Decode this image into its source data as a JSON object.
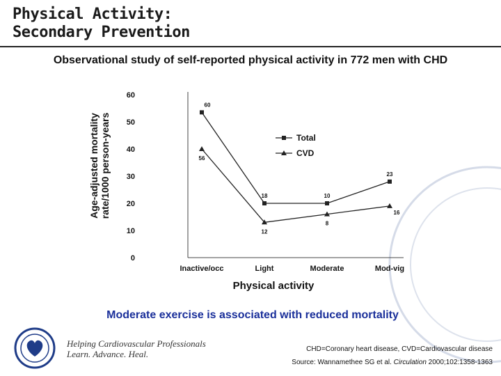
{
  "slide": {
    "title_line1": "Physical Activity:",
    "title_line2": "Secondary Prevention",
    "subtitle": "Observational study of self-reported physical activity in 772 men with CHD",
    "conclusion": "Moderate exercise is associated with reduced mortality",
    "colors": {
      "title_rule": "#222222",
      "conclusion": "#1a2f9a",
      "series": "#222222",
      "watermark": "#c8d0e0"
    }
  },
  "chart_data": {
    "type": "line",
    "title": "",
    "xlabel": "Physical activity",
    "ylabel_line1": "Age-adjusted mortality",
    "ylabel_line2": "rate/1000 person-years",
    "categories": [
      "Inactive/occ",
      "Light",
      "Moderate",
      "Mod-vig"
    ],
    "ylim": [
      0,
      60
    ],
    "yticks": [
      0,
      10,
      20,
      30,
      40,
      50,
      60
    ],
    "grid": false,
    "legend_position": "top-right",
    "series": [
      {
        "name": "Total",
        "marker": "square",
        "values": [
          53.5,
          20,
          20,
          28
        ],
        "labels": [
          "60",
          "18",
          "10",
          "23"
        ]
      },
      {
        "name": "CVD",
        "marker": "triangle",
        "values": [
          40,
          13,
          16,
          19
        ],
        "labels": [
          "56",
          "12",
          "8",
          "16"
        ]
      }
    ]
  },
  "footer": {
    "tagline_line1": "Helping Cardiovascular Professionals",
    "tagline_line2": "Learn. Advance. Heal.",
    "abbreviations": "CHD=Coronary heart disease, CVD=Cardiovascular disease",
    "source_prefix": "Source: Wannamethee SG et al. ",
    "source_journal": "Circulation",
    "source_suffix": " 2000;102:1358-1363"
  }
}
